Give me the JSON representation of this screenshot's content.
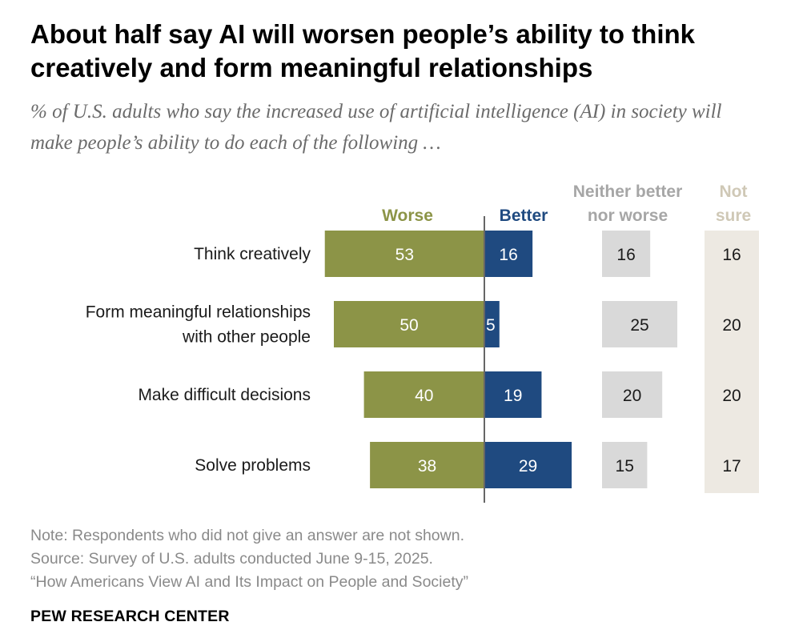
{
  "title": "About half say AI will worsen people’s ability to think creatively and form meaningful relationships",
  "subtitle": "% of U.S. adults who say the increased use of artificial intelligence (AI) in society will make people’s ability to do each of the following …",
  "chart_data": {
    "type": "bar",
    "orientation": "horizontal",
    "layout": "diverging with side columns",
    "categories": [
      "Think creatively",
      "Form meaningful relationships with other people",
      "Make difficult decisions",
      "Solve problems"
    ],
    "category_lines": [
      [
        "Think creatively"
      ],
      [
        "Form meaningful relationships",
        "with other people"
      ],
      [
        "Make difficult decisions"
      ],
      [
        "Solve problems"
      ]
    ],
    "series": [
      {
        "name": "Worse",
        "values": [
          53,
          50,
          40,
          38
        ],
        "color": "#8c9447"
      },
      {
        "name": "Better",
        "values": [
          16,
          5,
          19,
          29
        ],
        "color": "#1f4a80"
      },
      {
        "name": "Neither better nor worse",
        "values": [
          16,
          25,
          20,
          15
        ],
        "color": "#d9d9d9"
      },
      {
        "name": "Not sure",
        "values": [
          16,
          20,
          20,
          17
        ],
        "color": "#ede9e2"
      }
    ],
    "headers": {
      "worse": [
        "Worse"
      ],
      "better": [
        "Better"
      ],
      "neither": [
        "Neither better",
        "nor worse"
      ],
      "not_sure": [
        "Not",
        "sure"
      ]
    },
    "header_colors": {
      "worse": "#8c9447",
      "better": "#1f4a80",
      "neither": "#a6a6a6",
      "not_sure": "#cfc8b6"
    },
    "grid": false,
    "legend": "column headers above bars"
  },
  "notes": [
    "Note: Respondents who did not give an answer are not shown.",
    "Source: Survey of U.S. adults conducted June 9-15, 2025.",
    "“How Americans View AI and Its Impact on People and Society”"
  ],
  "brand": "PEW RESEARCH CENTER"
}
